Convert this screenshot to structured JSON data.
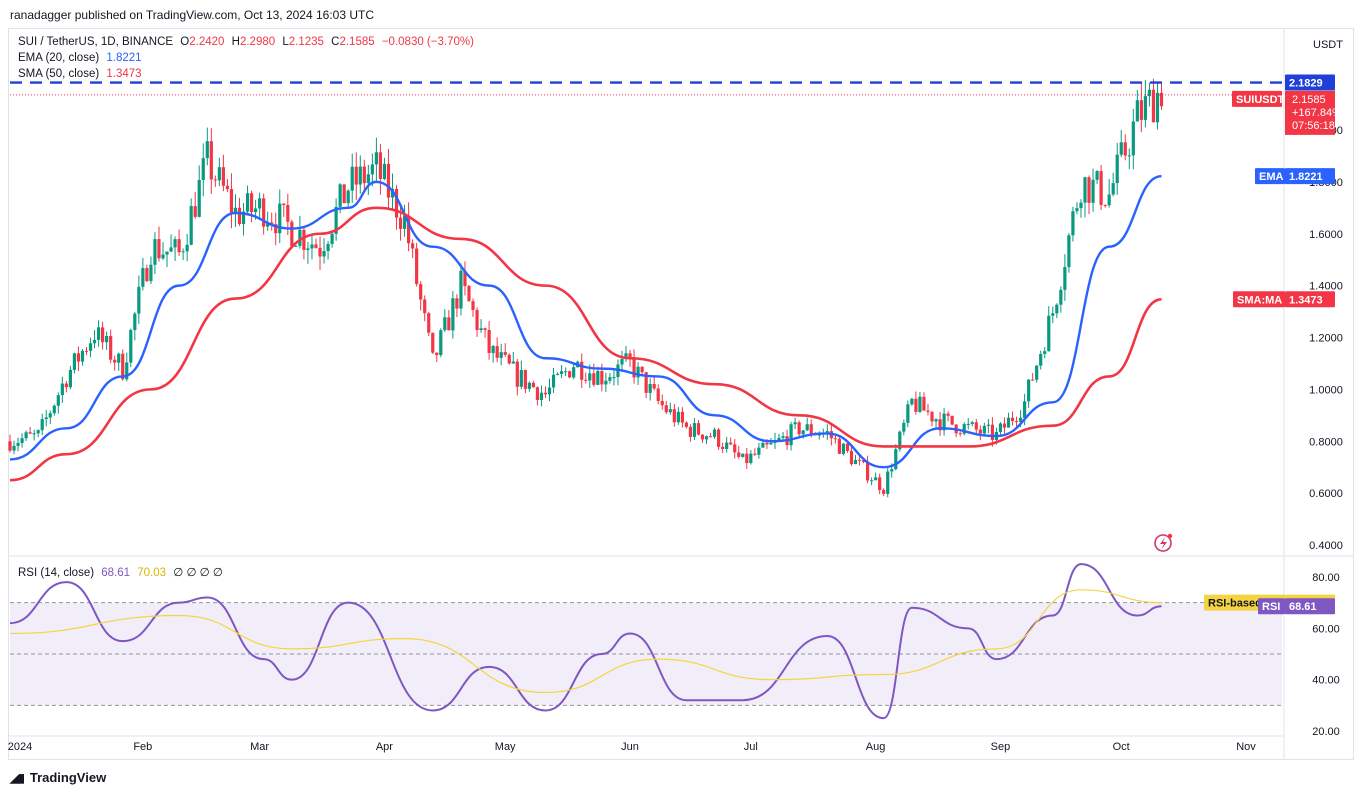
{
  "publisher": "ranadagger published on TradingView.com, Oct 13, 2024 16:03 UTC",
  "legend": {
    "symbol": "SUI / TetherUS, 1D, BINANCE",
    "open_label": "O",
    "open": "2.2420",
    "high_label": "H",
    "high": "2.2980",
    "low_label": "L",
    "low": "2.1235",
    "close_label": "C",
    "close": "2.1585",
    "change": "−0.0830 (−3.70%)",
    "ema_label": "EMA (20, close)",
    "ema_value": "1.8221",
    "sma_label": "SMA (50, close)",
    "sma_value": "1.3473",
    "rsi_label": "RSI (14, close)",
    "rsi_value": "68.61",
    "rsi_ma_value": "70.03",
    "rsi_extra": "∅ ∅ ∅ ∅"
  },
  "axis": {
    "currency": "USDT",
    "price_ticks": [
      "2.0000",
      "1.8000",
      "1.6000",
      "1.4000",
      "1.2000",
      "1.0000",
      "0.8000",
      "0.6000",
      "0.4000"
    ],
    "rsi_ticks": [
      "80.00",
      "60.00",
      "40.00",
      "20.00"
    ],
    "time_ticks": [
      "2024",
      "Feb",
      "Mar",
      "Apr",
      "May",
      "Jun",
      "Jul",
      "Aug",
      "Sep",
      "Oct",
      "Nov"
    ]
  },
  "tags": {
    "resistance": "2.1829",
    "symbol_tag": "SUIUSDT",
    "price": "2.1585",
    "pct": "+167.84%",
    "countdown": "07:56:18",
    "ema_tag": "EMA",
    "ema_value": "1.8221",
    "sma_tag": "SMA:MA",
    "sma_value": "1.3473",
    "rsi_ma_tag": "RSI-based MA",
    "rsi_ma_value": "70.03",
    "rsi_tag": "RSI",
    "rsi_value": "68.61"
  },
  "footer": "TradingView",
  "colors": {
    "up": "#089981",
    "down": "#f23645",
    "ema": "#2962ff",
    "sma": "#f23645",
    "rsi": "#7e57c2",
    "rsi_ma": "#f5d442",
    "resistance": "#1e3fd8"
  },
  "chart_data": [
    {
      "type": "candlestick",
      "title": "SUI / TetherUS, 1D, BINANCE",
      "ylabel": "USDT",
      "ylim": [
        0.4,
        2.3
      ],
      "x_ticks": [
        "2024",
        "Feb",
        "Mar",
        "Apr",
        "May",
        "Jun",
        "Jul",
        "Aug",
        "Sep",
        "Oct",
        "Nov"
      ],
      "resistance_level": 2.1829,
      "price_series": [
        {
          "date": "2024-01-01",
          "close": 0.8
        },
        {
          "date": "2024-01-08",
          "close": 0.82
        },
        {
          "date": "2024-01-15",
          "close": 1.05
        },
        {
          "date": "2024-01-22",
          "close": 1.22
        },
        {
          "date": "2024-01-29",
          "close": 1.08
        },
        {
          "date": "2024-02-05",
          "close": 1.55
        },
        {
          "date": "2024-02-12",
          "close": 1.52
        },
        {
          "date": "2024-02-19",
          "close": 1.88
        },
        {
          "date": "2024-02-26",
          "close": 1.68
        },
        {
          "date": "2024-03-04",
          "close": 1.7
        },
        {
          "date": "2024-03-11",
          "close": 1.62
        },
        {
          "date": "2024-03-18",
          "close": 1.55
        },
        {
          "date": "2024-03-25",
          "close": 1.78
        },
        {
          "date": "2024-04-01",
          "close": 1.85
        },
        {
          "date": "2024-04-08",
          "close": 1.65
        },
        {
          "date": "2024-04-15",
          "close": 1.1
        },
        {
          "date": "2024-04-22",
          "close": 1.4
        },
        {
          "date": "2024-04-29",
          "close": 1.15
        },
        {
          "date": "2024-05-06",
          "close": 1.05
        },
        {
          "date": "2024-05-13",
          "close": 0.98
        },
        {
          "date": "2024-05-20",
          "close": 1.1
        },
        {
          "date": "2024-05-27",
          "close": 1.05
        },
        {
          "date": "2024-06-03",
          "close": 1.1
        },
        {
          "date": "2024-06-10",
          "close": 0.95
        },
        {
          "date": "2024-06-17",
          "close": 0.85
        },
        {
          "date": "2024-06-24",
          "close": 0.82
        },
        {
          "date": "2024-07-01",
          "close": 0.72
        },
        {
          "date": "2024-07-08",
          "close": 0.78
        },
        {
          "date": "2024-07-15",
          "close": 0.85
        },
        {
          "date": "2024-07-22",
          "close": 0.83
        },
        {
          "date": "2024-07-29",
          "close": 0.72
        },
        {
          "date": "2024-08-05",
          "close": 0.62
        },
        {
          "date": "2024-08-12",
          "close": 0.95
        },
        {
          "date": "2024-08-19",
          "close": 0.88
        },
        {
          "date": "2024-08-26",
          "close": 0.85
        },
        {
          "date": "2024-09-02",
          "close": 0.82
        },
        {
          "date": "2024-09-09",
          "close": 0.95
        },
        {
          "date": "2024-09-16",
          "close": 1.3
        },
        {
          "date": "2024-09-23",
          "close": 1.8
        },
        {
          "date": "2024-09-30",
          "close": 1.75
        },
        {
          "date": "2024-10-07",
          "close": 2.05
        },
        {
          "date": "2024-10-13",
          "close": 2.1585
        }
      ],
      "ema_20": [
        {
          "date": "2024-01-01",
          "value": 0.73
        },
        {
          "date": "2024-01-15",
          "value": 0.85
        },
        {
          "date": "2024-01-29",
          "value": 1.05
        },
        {
          "date": "2024-02-12",
          "value": 1.4
        },
        {
          "date": "2024-02-26",
          "value": 1.68
        },
        {
          "date": "2024-03-11",
          "value": 1.62
        },
        {
          "date": "2024-03-25",
          "value": 1.7
        },
        {
          "date": "2024-04-01",
          "value": 1.8
        },
        {
          "date": "2024-04-15",
          "value": 1.55
        },
        {
          "date": "2024-04-29",
          "value": 1.4
        },
        {
          "date": "2024-05-13",
          "value": 1.12
        },
        {
          "date": "2024-05-27",
          "value": 1.08
        },
        {
          "date": "2024-06-10",
          "value": 1.05
        },
        {
          "date": "2024-06-24",
          "value": 0.9
        },
        {
          "date": "2024-07-08",
          "value": 0.8
        },
        {
          "date": "2024-07-22",
          "value": 0.83
        },
        {
          "date": "2024-08-05",
          "value": 0.7
        },
        {
          "date": "2024-08-19",
          "value": 0.85
        },
        {
          "date": "2024-09-02",
          "value": 0.82
        },
        {
          "date": "2024-09-16",
          "value": 0.95
        },
        {
          "date": "2024-09-30",
          "value": 1.55
        },
        {
          "date": "2024-10-13",
          "value": 1.8221
        }
      ],
      "sma_50": [
        {
          "date": "2024-01-01",
          "value": 0.65
        },
        {
          "date": "2024-01-15",
          "value": 0.75
        },
        {
          "date": "2024-02-05",
          "value": 1.0
        },
        {
          "date": "2024-02-26",
          "value": 1.35
        },
        {
          "date": "2024-03-18",
          "value": 1.6
        },
        {
          "date": "2024-04-01",
          "value": 1.7
        },
        {
          "date": "2024-04-22",
          "value": 1.58
        },
        {
          "date": "2024-05-13",
          "value": 1.4
        },
        {
          "date": "2024-06-03",
          "value": 1.12
        },
        {
          "date": "2024-06-24",
          "value": 1.02
        },
        {
          "date": "2024-07-15",
          "value": 0.9
        },
        {
          "date": "2024-08-05",
          "value": 0.78
        },
        {
          "date": "2024-08-26",
          "value": 0.78
        },
        {
          "date": "2024-09-16",
          "value": 0.86
        },
        {
          "date": "2024-09-30",
          "value": 1.05
        },
        {
          "date": "2024-10-13",
          "value": 1.3473
        }
      ]
    },
    {
      "type": "line",
      "title": "RSI (14, close)",
      "ylim": [
        20,
        90
      ],
      "levels": [
        70,
        50,
        30
      ],
      "rsi": [
        {
          "date": "2024-01-01",
          "value": 62
        },
        {
          "date": "2024-01-15",
          "value": 78
        },
        {
          "date": "2024-01-29",
          "value": 55
        },
        {
          "date": "2024-02-12",
          "value": 70
        },
        {
          "date": "2024-02-19",
          "value": 72
        },
        {
          "date": "2024-03-04",
          "value": 48
        },
        {
          "date": "2024-03-11",
          "value": 40
        },
        {
          "date": "2024-03-25",
          "value": 70
        },
        {
          "date": "2024-04-15",
          "value": 28
        },
        {
          "date": "2024-04-29",
          "value": 45
        },
        {
          "date": "2024-05-13",
          "value": 28
        },
        {
          "date": "2024-05-27",
          "value": 50
        },
        {
          "date": "2024-06-03",
          "value": 58
        },
        {
          "date": "2024-06-17",
          "value": 32
        },
        {
          "date": "2024-07-01",
          "value": 32
        },
        {
          "date": "2024-07-22",
          "value": 57
        },
        {
          "date": "2024-08-05",
          "value": 25
        },
        {
          "date": "2024-08-12",
          "value": 68
        },
        {
          "date": "2024-08-26",
          "value": 60
        },
        {
          "date": "2024-09-02",
          "value": 48
        },
        {
          "date": "2024-09-16",
          "value": 65
        },
        {
          "date": "2024-09-23",
          "value": 85
        },
        {
          "date": "2024-10-07",
          "value": 65
        },
        {
          "date": "2024-10-13",
          "value": 68.61
        }
      ],
      "rsi_ma": [
        {
          "date": "2024-01-01",
          "value": 58
        },
        {
          "date": "2024-02-12",
          "value": 65
        },
        {
          "date": "2024-03-11",
          "value": 52
        },
        {
          "date": "2024-04-08",
          "value": 56
        },
        {
          "date": "2024-05-13",
          "value": 35
        },
        {
          "date": "2024-06-10",
          "value": 48
        },
        {
          "date": "2024-07-08",
          "value": 40
        },
        {
          "date": "2024-08-05",
          "value": 42
        },
        {
          "date": "2024-09-02",
          "value": 52
        },
        {
          "date": "2024-09-23",
          "value": 75
        },
        {
          "date": "2024-10-13",
          "value": 70.03
        }
      ]
    }
  ]
}
